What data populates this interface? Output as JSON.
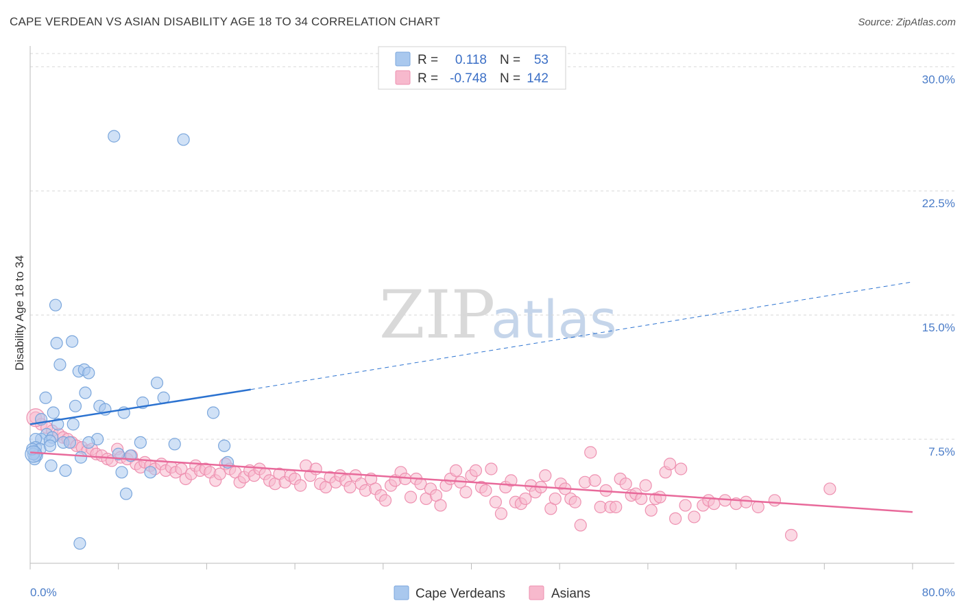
{
  "header": {
    "title": "CAPE VERDEAN VS ASIAN DISABILITY AGE 18 TO 34 CORRELATION CHART",
    "source": "Source: ZipAtlas.com"
  },
  "watermark": {
    "zip": "ZIP",
    "atlas": "atlas"
  },
  "legend_top": {
    "rows": [
      {
        "r_label": "R =",
        "r_value": "0.118",
        "n_label": "N =",
        "n_value": "53"
      },
      {
        "r_label": "R =",
        "r_value": "-0.748",
        "n_label": "N =",
        "n_value": "142"
      }
    ]
  },
  "legend_bottom": {
    "items": [
      "Cape Verdeans",
      "Asians"
    ]
  },
  "colors": {
    "blue_fill": "#a9c8ee",
    "blue_stroke": "#7aa6dc",
    "blue_line": "#2b72d0",
    "pink_fill": "#f7b9cd",
    "pink_stroke": "#ee90b0",
    "pink_line": "#e8699a",
    "grid": "#d8d8d8",
    "tick_text": "#4a7cc8"
  },
  "chart_data": {
    "type": "scatter",
    "title": "CAPE VERDEAN VS ASIAN DISABILITY AGE 18 TO 34 CORRELATION CHART",
    "xlabel": "",
    "ylabel": "Disability Age 18 to 34",
    "xlim": [
      0,
      80
    ],
    "ylim": [
      0,
      30.8
    ],
    "x_tick_labels": [
      "0.0%",
      "80.0%"
    ],
    "y_ticks": [
      7.5,
      15.0,
      22.5,
      30.0
    ],
    "y_tick_labels": [
      "7.5%",
      "15.0%",
      "22.5%",
      "30.0%"
    ],
    "series": [
      {
        "name": "Cape Verdeans",
        "r": 0.118,
        "n": 53,
        "trend": {
          "x_start": 0,
          "y_start": 8.4,
          "x_solid_end": 20,
          "y_solid_end": 10.5,
          "x_end": 80,
          "y_end": 17.0
        },
        "points": [
          [
            7.6,
            25.8
          ],
          [
            13.9,
            25.6
          ],
          [
            2.3,
            15.6
          ],
          [
            2.4,
            13.3
          ],
          [
            3.8,
            13.4
          ],
          [
            2.7,
            12.0
          ],
          [
            4.4,
            11.6
          ],
          [
            4.9,
            11.7
          ],
          [
            5.3,
            11.5
          ],
          [
            11.5,
            10.9
          ],
          [
            1.4,
            10.0
          ],
          [
            5.0,
            10.3
          ],
          [
            12.1,
            10.0
          ],
          [
            4.1,
            9.5
          ],
          [
            6.3,
            9.5
          ],
          [
            6.8,
            9.3
          ],
          [
            10.2,
            9.7
          ],
          [
            8.5,
            9.1
          ],
          [
            2.1,
            9.1
          ],
          [
            16.6,
            9.1
          ],
          [
            1.0,
            8.7
          ],
          [
            2.5,
            8.4
          ],
          [
            3.9,
            8.4
          ],
          [
            1.5,
            7.8
          ],
          [
            2.0,
            7.6
          ],
          [
            6.1,
            7.5
          ],
          [
            1.0,
            7.5
          ],
          [
            1.8,
            7.4
          ],
          [
            0.5,
            7.5
          ],
          [
            3.0,
            7.3
          ],
          [
            3.6,
            7.3
          ],
          [
            5.3,
            7.3
          ],
          [
            10.0,
            7.3
          ],
          [
            0.5,
            7.0
          ],
          [
            0.9,
            6.9
          ],
          [
            1.8,
            7.1
          ],
          [
            13.1,
            7.2
          ],
          [
            17.6,
            7.1
          ],
          [
            0.4,
            6.7
          ],
          [
            0.6,
            6.5
          ],
          [
            0.4,
            6.3
          ],
          [
            4.6,
            6.4
          ],
          [
            8.0,
            6.6
          ],
          [
            9.1,
            6.5
          ],
          [
            17.9,
            6.1
          ],
          [
            1.9,
            5.9
          ],
          [
            3.2,
            5.6
          ],
          [
            8.3,
            5.5
          ],
          [
            10.9,
            5.5
          ],
          [
            8.7,
            4.2
          ],
          [
            4.5,
            1.2
          ],
          [
            0.3,
            6.6
          ],
          [
            0.2,
            6.9
          ]
        ]
      },
      {
        "name": "Asians",
        "r": -0.748,
        "n": 142,
        "trend": {
          "x_start": 0,
          "y_start": 6.7,
          "x_end": 80,
          "y_end": 3.1
        },
        "points": [
          [
            0.5,
            8.8
          ],
          [
            1.0,
            8.4
          ],
          [
            1.5,
            8.2
          ],
          [
            2.0,
            8.0
          ],
          [
            2.6,
            7.8
          ],
          [
            3.0,
            7.6
          ],
          [
            3.4,
            7.5
          ],
          [
            3.8,
            7.3
          ],
          [
            4.2,
            7.1
          ],
          [
            4.7,
            7.0
          ],
          [
            5.2,
            6.8
          ],
          [
            5.6,
            6.9
          ],
          [
            6.0,
            6.6
          ],
          [
            6.5,
            6.5
          ],
          [
            7.0,
            6.3
          ],
          [
            7.4,
            6.2
          ],
          [
            7.9,
            6.9
          ],
          [
            8.2,
            6.4
          ],
          [
            8.8,
            6.3
          ],
          [
            9.2,
            6.5
          ],
          [
            9.6,
            6.0
          ],
          [
            10.0,
            5.8
          ],
          [
            10.4,
            6.1
          ],
          [
            10.9,
            5.9
          ],
          [
            11.3,
            5.7
          ],
          [
            11.9,
            6.0
          ],
          [
            12.3,
            5.6
          ],
          [
            12.8,
            5.8
          ],
          [
            13.2,
            5.5
          ],
          [
            13.7,
            5.7
          ],
          [
            14.1,
            5.1
          ],
          [
            14.6,
            5.4
          ],
          [
            15.0,
            5.9
          ],
          [
            15.4,
            5.6
          ],
          [
            15.9,
            5.7
          ],
          [
            16.3,
            5.5
          ],
          [
            16.8,
            5.0
          ],
          [
            17.2,
            5.4
          ],
          [
            17.7,
            6.0
          ],
          [
            18.1,
            5.7
          ],
          [
            18.6,
            5.5
          ],
          [
            19.0,
            4.9
          ],
          [
            19.4,
            5.2
          ],
          [
            19.9,
            5.6
          ],
          [
            20.3,
            5.3
          ],
          [
            20.8,
            5.7
          ],
          [
            21.3,
            5.4
          ],
          [
            21.7,
            5.0
          ],
          [
            22.2,
            4.8
          ],
          [
            22.6,
            5.4
          ],
          [
            23.1,
            4.9
          ],
          [
            23.6,
            5.3
          ],
          [
            24.0,
            5.1
          ],
          [
            24.5,
            4.7
          ],
          [
            25.0,
            5.9
          ],
          [
            25.4,
            5.3
          ],
          [
            25.9,
            5.7
          ],
          [
            26.3,
            4.8
          ],
          [
            26.8,
            4.6
          ],
          [
            27.2,
            5.2
          ],
          [
            27.7,
            4.9
          ],
          [
            28.1,
            5.3
          ],
          [
            28.6,
            5.0
          ],
          [
            29.0,
            4.6
          ],
          [
            29.5,
            5.3
          ],
          [
            30.0,
            4.8
          ],
          [
            30.4,
            4.4
          ],
          [
            30.9,
            5.1
          ],
          [
            31.3,
            4.5
          ],
          [
            31.8,
            4.1
          ],
          [
            32.2,
            3.8
          ],
          [
            32.7,
            4.7
          ],
          [
            33.1,
            5.0
          ],
          [
            33.6,
            5.5
          ],
          [
            34.0,
            5.1
          ],
          [
            34.5,
            4.0
          ],
          [
            35.0,
            5.1
          ],
          [
            35.4,
            4.8
          ],
          [
            35.9,
            3.9
          ],
          [
            36.3,
            4.5
          ],
          [
            36.8,
            4.1
          ],
          [
            37.2,
            3.5
          ],
          [
            37.7,
            4.7
          ],
          [
            38.1,
            5.1
          ],
          [
            38.6,
            5.6
          ],
          [
            39.0,
            4.9
          ],
          [
            39.5,
            4.3
          ],
          [
            40.0,
            5.3
          ],
          [
            40.4,
            5.6
          ],
          [
            40.9,
            4.6
          ],
          [
            41.3,
            4.4
          ],
          [
            41.8,
            5.7
          ],
          [
            42.2,
            3.7
          ],
          [
            42.7,
            3.0
          ],
          [
            43.1,
            4.6
          ],
          [
            43.6,
            5.0
          ],
          [
            44.0,
            3.7
          ],
          [
            44.5,
            3.6
          ],
          [
            44.9,
            3.9
          ],
          [
            45.4,
            4.7
          ],
          [
            45.8,
            4.3
          ],
          [
            46.3,
            4.6
          ],
          [
            46.7,
            5.3
          ],
          [
            47.2,
            3.3
          ],
          [
            47.6,
            3.9
          ],
          [
            48.1,
            4.8
          ],
          [
            48.5,
            4.5
          ],
          [
            49.0,
            3.9
          ],
          [
            49.4,
            3.7
          ],
          [
            49.9,
            2.3
          ],
          [
            50.3,
            4.9
          ],
          [
            50.8,
            6.7
          ],
          [
            51.2,
            5.0
          ],
          [
            51.7,
            3.4
          ],
          [
            52.2,
            4.4
          ],
          [
            52.6,
            3.4
          ],
          [
            53.1,
            3.4
          ],
          [
            53.5,
            5.1
          ],
          [
            54.0,
            4.8
          ],
          [
            54.5,
            4.1
          ],
          [
            54.9,
            4.2
          ],
          [
            55.4,
            3.9
          ],
          [
            55.8,
            4.7
          ],
          [
            56.3,
            3.2
          ],
          [
            56.7,
            3.9
          ],
          [
            57.1,
            4.0
          ],
          [
            57.6,
            5.5
          ],
          [
            58.0,
            6.0
          ],
          [
            58.5,
            2.7
          ],
          [
            59.0,
            5.7
          ],
          [
            59.4,
            3.5
          ],
          [
            60.2,
            2.8
          ],
          [
            61.0,
            3.5
          ],
          [
            61.5,
            3.8
          ],
          [
            62.0,
            3.6
          ],
          [
            63.0,
            3.8
          ],
          [
            64.0,
            3.6
          ],
          [
            64.9,
            3.7
          ],
          [
            66.0,
            3.4
          ],
          [
            67.5,
            3.8
          ],
          [
            69.0,
            1.7
          ],
          [
            72.5,
            4.5
          ]
        ]
      }
    ]
  }
}
